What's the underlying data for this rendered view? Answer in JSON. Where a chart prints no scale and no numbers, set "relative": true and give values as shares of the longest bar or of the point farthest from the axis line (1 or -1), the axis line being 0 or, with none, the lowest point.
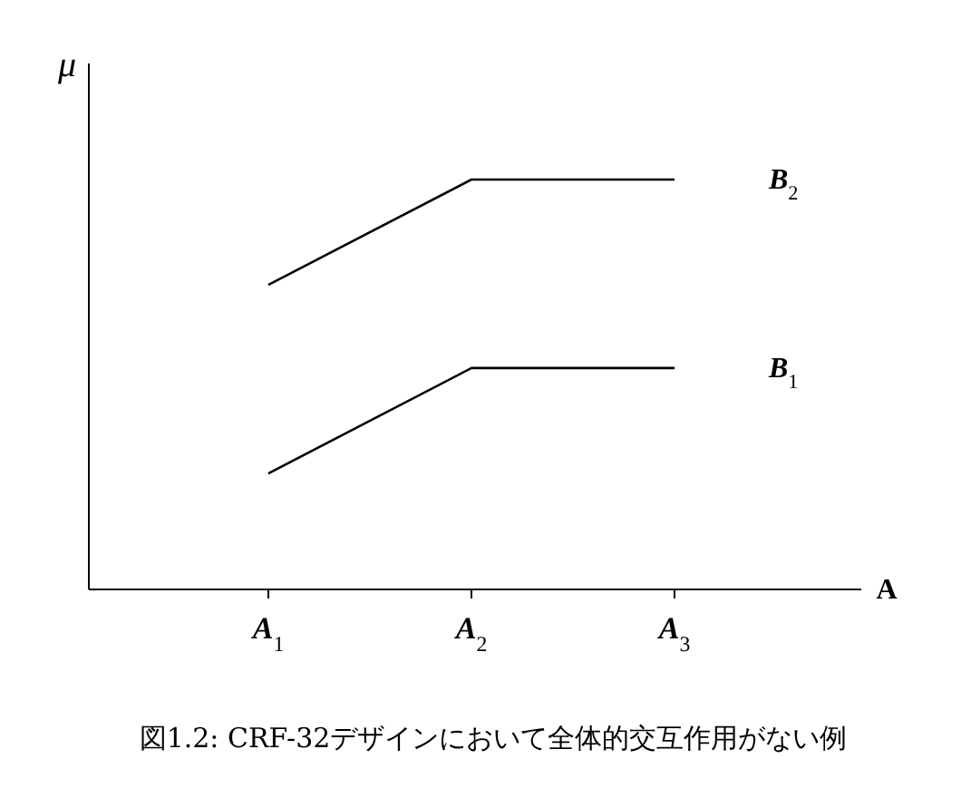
{
  "chart_data": {
    "type": "line",
    "relative": true,
    "xlabel": "A",
    "ylabel": "μ",
    "categories": [
      "A$_{1}$",
      "A$_{2}$",
      "A$_{3}$"
    ],
    "series": [
      {
        "name": "B$_{2}$",
        "color": "#000000",
        "values": [
          0.743,
          1,
          1
        ]
      },
      {
        "name": "B$_{1}$",
        "color": "#000000",
        "values": [
          0.283,
          0.54,
          0.54
        ]
      }
    ],
    "grid": false,
    "marker": "none",
    "line_style": "solid",
    "annotations": [
      "図1.2: CRF-32デザインにおいて全体的交互作用がない例"
    ]
  }
}
